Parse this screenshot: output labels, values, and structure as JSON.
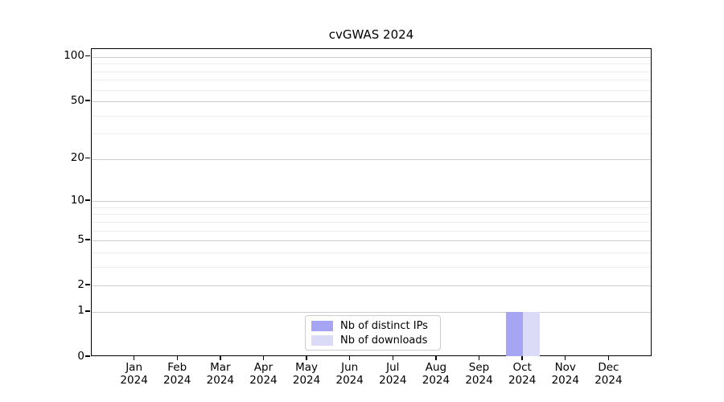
{
  "chart_data": {
    "type": "bar",
    "title": "cvGWAS 2024",
    "categories": [
      "Jan",
      "Feb",
      "Mar",
      "Apr",
      "May",
      "Jun",
      "Jul",
      "Aug",
      "Sep",
      "Oct",
      "Nov",
      "Dec"
    ],
    "category_year": "2024",
    "series": [
      {
        "name": "Nb of distinct IPs",
        "color": "#a5a5f4",
        "values": [
          0,
          0,
          0,
          0,
          0,
          0,
          0,
          0,
          0,
          1,
          0,
          0
        ]
      },
      {
        "name": "Nb of downloads",
        "color": "#dbdbf8",
        "values": [
          0,
          0,
          0,
          0,
          0,
          0,
          0,
          0,
          0,
          1,
          0,
          0
        ]
      }
    ],
    "yticks": [
      0,
      1,
      2,
      5,
      10,
      20,
      50,
      100
    ],
    "minor_gridlines": [
      3,
      4,
      6,
      7,
      8,
      9,
      30,
      40,
      60,
      70,
      80,
      90
    ],
    "scale": "log1p",
    "ylim": [
      0,
      113
    ],
    "grid": "horizontal",
    "legend_position": "bottom-center"
  }
}
